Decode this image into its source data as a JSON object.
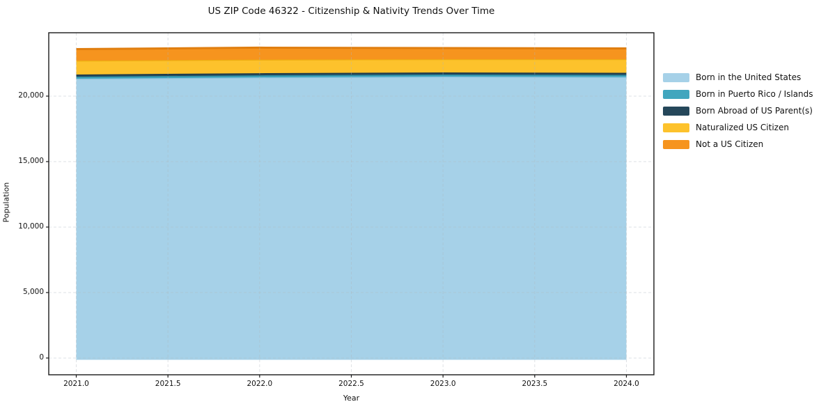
{
  "chart_data": {
    "type": "area",
    "stacked": true,
    "title": "US ZIP Code 46322 - Citizenship & Nativity Trends Over Time",
    "xlabel": "Year",
    "ylabel": "Population",
    "x": [
      2021,
      2022,
      2023,
      2024
    ],
    "series": [
      {
        "name": "Born in the United States",
        "values": [
          21330,
          21430,
          21490,
          21460
        ],
        "color": "#a6d1e8",
        "edge": "#8cc3de"
      },
      {
        "name": "Born in Puerto Rico / Islands",
        "values": [
          160,
          160,
          160,
          160
        ],
        "color": "#41a6be",
        "edge": "#2e8aa1"
      },
      {
        "name": "Born Abroad of US Parent(s)",
        "values": [
          160,
          160,
          160,
          160
        ],
        "color": "#25475a",
        "edge": "#1c3848"
      },
      {
        "name": "Naturalized US Citizen",
        "values": [
          1060,
          1040,
          1010,
          1040
        ],
        "color": "#fdc22c",
        "edge": "#eead12"
      },
      {
        "name": "Not a US Citizen",
        "values": [
          880,
          910,
          850,
          820
        ],
        "color": "#f6941e",
        "edge": "#e07e0f"
      }
    ],
    "xticks": [
      {
        "v": 2021.0,
        "label": "2021.0"
      },
      {
        "v": 2021.5,
        "label": "2021.5"
      },
      {
        "v": 2022.0,
        "label": "2022.0"
      },
      {
        "v": 2022.5,
        "label": "2022.5"
      },
      {
        "v": 2023.0,
        "label": "2023.0"
      },
      {
        "v": 2023.5,
        "label": "2023.5"
      },
      {
        "v": 2024.0,
        "label": "2024.0"
      }
    ],
    "yticks": [
      {
        "v": 0,
        "label": "0"
      },
      {
        "v": 5000,
        "label": "5,000"
      },
      {
        "v": 10000,
        "label": "10,000"
      },
      {
        "v": 15000,
        "label": "15,000"
      },
      {
        "v": 20000,
        "label": "20,000"
      }
    ],
    "xlim": [
      2020.85,
      2024.15
    ],
    "ylim": [
      -1280,
      24840
    ],
    "grid": true,
    "legend_position": "right",
    "colors": {
      "grid": "#aeb6bd",
      "spine": "#1a1a1a",
      "background": "#ffffff"
    }
  }
}
